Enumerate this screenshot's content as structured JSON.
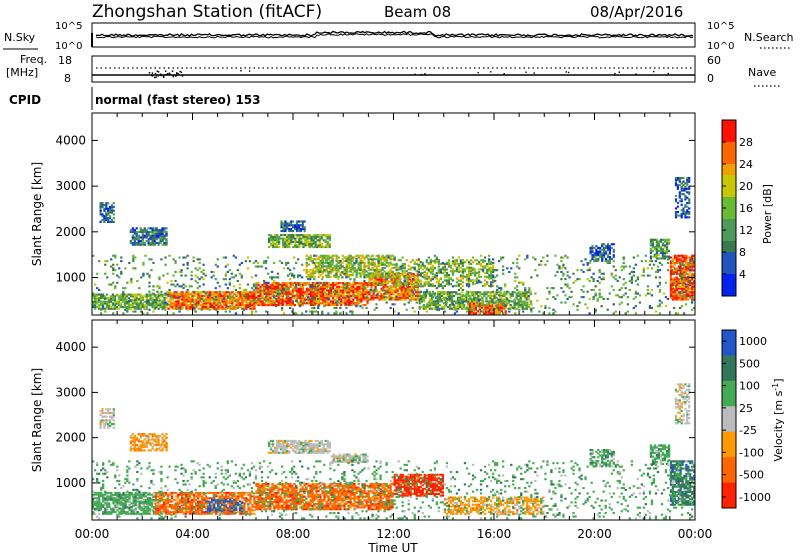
{
  "header": {
    "station": "Zhongshan Station (fitACF)",
    "beam": "Beam 08",
    "date": "08/Apr/2016"
  },
  "panels": {
    "nsky": {
      "label": "N.Sky",
      "ticks": [
        "10^5",
        "10^0"
      ]
    },
    "nsearch": {
      "label": "N.Search",
      "ticks": [
        "10^5",
        "10^0"
      ]
    },
    "freq": {
      "label": "Freq.",
      "unit": "[MHz]",
      "ticks": [
        "18",
        "8"
      ]
    },
    "nave": {
      "label": "Nave",
      "ticks": [
        "60",
        "0"
      ]
    },
    "cpid": {
      "label": "CPID",
      "text": "normal (fast stereo) 153"
    }
  },
  "colors": {
    "power": [
      "#0022ee",
      "#2255bb",
      "#3a7a4a",
      "#4f9a5a",
      "#66bb33",
      "#c8c800",
      "#f0a000",
      "#ff6600",
      "#ff1100"
    ],
    "velocity": [
      "#2255cc",
      "#33775a",
      "#44aa55",
      "#bbbbbb",
      "#ff9900",
      "#ff6600",
      "#ff2200"
    ]
  },
  "chart_data": [
    {
      "type": "heatmap",
      "name": "power",
      "ylabel": "Slant Range [km]",
      "xlabel": "Time UT",
      "x_ticks": [
        "00:00",
        "04:00",
        "08:00",
        "12:00",
        "16:00",
        "20:00",
        "00:00"
      ],
      "xlim_hours": [
        0,
        24
      ],
      "ylim_km": [
        180,
        4600
      ],
      "y_ticks": [
        1000,
        2000,
        3000,
        4000
      ],
      "colorbar": {
        "label": "Power [dB]",
        "ticks": [
          4,
          8,
          12,
          16,
          20,
          24,
          28
        ],
        "range": [
          0,
          32
        ]
      },
      "regions": [
        {
          "t": [
            0.0,
            3.0
          ],
          "r": [
            300,
            650
          ],
          "v": 14,
          "d": 0.75
        },
        {
          "t": [
            3.0,
            6.5
          ],
          "r": [
            300,
            700
          ],
          "v": 26,
          "d": 0.85
        },
        {
          "t": [
            6.5,
            11.0
          ],
          "r": [
            380,
            900
          ],
          "v": 27,
          "d": 0.85
        },
        {
          "t": [
            11.0,
            13.0
          ],
          "r": [
            500,
            1100
          ],
          "v": 26,
          "d": 0.8
        },
        {
          "t": [
            13.0,
            17.5
          ],
          "r": [
            300,
            700
          ],
          "v": 14,
          "d": 0.7
        },
        {
          "t": [
            15.0,
            16.5
          ],
          "r": [
            200,
            450
          ],
          "v": 28,
          "d": 0.7
        },
        {
          "t": [
            1.5,
            3.0
          ],
          "r": [
            1700,
            2100
          ],
          "v": 8,
          "d": 0.7
        },
        {
          "t": [
            0.3,
            0.9
          ],
          "r": [
            2200,
            2650
          ],
          "v": 7,
          "d": 0.6
        },
        {
          "t": [
            7.0,
            9.5
          ],
          "r": [
            1650,
            1950
          ],
          "v": 14,
          "d": 0.8
        },
        {
          "t": [
            7.5,
            8.5
          ],
          "r": [
            2000,
            2250
          ],
          "v": 7,
          "d": 0.7
        },
        {
          "t": [
            8.5,
            12.0
          ],
          "r": [
            1000,
            1500
          ],
          "v": 18,
          "d": 0.6
        },
        {
          "t": [
            12.0,
            16.0
          ],
          "r": [
            800,
            1400
          ],
          "v": 16,
          "d": 0.5
        },
        {
          "t": [
            19.8,
            20.8
          ],
          "r": [
            1350,
            1750
          ],
          "v": 6,
          "d": 0.6
        },
        {
          "t": [
            22.2,
            23.0
          ],
          "r": [
            1400,
            1850
          ],
          "v": 12,
          "d": 0.7
        },
        {
          "t": [
            23.0,
            24.0
          ],
          "r": [
            500,
            1500
          ],
          "v": 28,
          "d": 0.8
        },
        {
          "t": [
            23.2,
            23.8
          ],
          "r": [
            2300,
            3200
          ],
          "v": 6,
          "d": 0.5
        },
        {
          "t": [
            0.0,
            24.0
          ],
          "r": [
            200,
            1500
          ],
          "v": 12,
          "d": 0.12
        }
      ]
    },
    {
      "type": "heatmap",
      "name": "velocity",
      "ylabel": "Slant Range [km]",
      "xlabel": "Time UT",
      "x_ticks": [
        "00:00",
        "04:00",
        "08:00",
        "12:00",
        "16:00",
        "20:00",
        "00:00"
      ],
      "xlim_hours": [
        0,
        24
      ],
      "ylim_km": [
        180,
        4600
      ],
      "y_ticks": [
        1000,
        2000,
        3000,
        4000
      ],
      "colorbar": {
        "label": "Velocity [m s^-1]",
        "ticks": [
          "1000",
          "500",
          "100",
          "25",
          "-25",
          "-100",
          "-500",
          "-1000"
        ]
      },
      "regions": [
        {
          "t": [
            0.0,
            2.5
          ],
          "r": [
            300,
            800
          ],
          "c": 2,
          "d": 0.75
        },
        {
          "t": [
            2.5,
            6.5
          ],
          "r": [
            300,
            800
          ],
          "c": 5,
          "d": 0.75
        },
        {
          "t": [
            6.5,
            12.0
          ],
          "r": [
            400,
            1000
          ],
          "c": 5,
          "d": 0.75
        },
        {
          "t": [
            12.0,
            14.0
          ],
          "r": [
            700,
            1200
          ],
          "c": 6,
          "d": 0.75
        },
        {
          "t": [
            14.0,
            18.0
          ],
          "r": [
            300,
            700
          ],
          "c": 4,
          "d": 0.6
        },
        {
          "t": [
            0.3,
            0.9
          ],
          "r": [
            2200,
            2650
          ],
          "c": 3,
          "d": 0.6
        },
        {
          "t": [
            1.5,
            3.0
          ],
          "r": [
            1700,
            2100
          ],
          "c": 4,
          "d": 0.65
        },
        {
          "t": [
            7.0,
            9.5
          ],
          "r": [
            1650,
            1950
          ],
          "c": 3,
          "d": 0.75
        },
        {
          "t": [
            9.5,
            11.0
          ],
          "r": [
            1450,
            1650
          ],
          "c": 3,
          "d": 0.7
        },
        {
          "t": [
            19.8,
            20.8
          ],
          "r": [
            1350,
            1750
          ],
          "c": 2,
          "d": 0.6
        },
        {
          "t": [
            22.2,
            23.0
          ],
          "r": [
            1400,
            1850
          ],
          "c": 2,
          "d": 0.65
        },
        {
          "t": [
            23.0,
            24.0
          ],
          "r": [
            500,
            1500
          ],
          "c": 1,
          "d": 0.7
        },
        {
          "t": [
            23.2,
            23.8
          ],
          "r": [
            2300,
            3200
          ],
          "c": 3,
          "d": 0.5
        },
        {
          "t": [
            4.5,
            6.0
          ],
          "r": [
            350,
            650
          ],
          "c": 0,
          "d": 0.5
        },
        {
          "t": [
            0.0,
            24.0
          ],
          "r": [
            200,
            1500
          ],
          "c": 2,
          "d": 0.12
        }
      ]
    }
  ]
}
